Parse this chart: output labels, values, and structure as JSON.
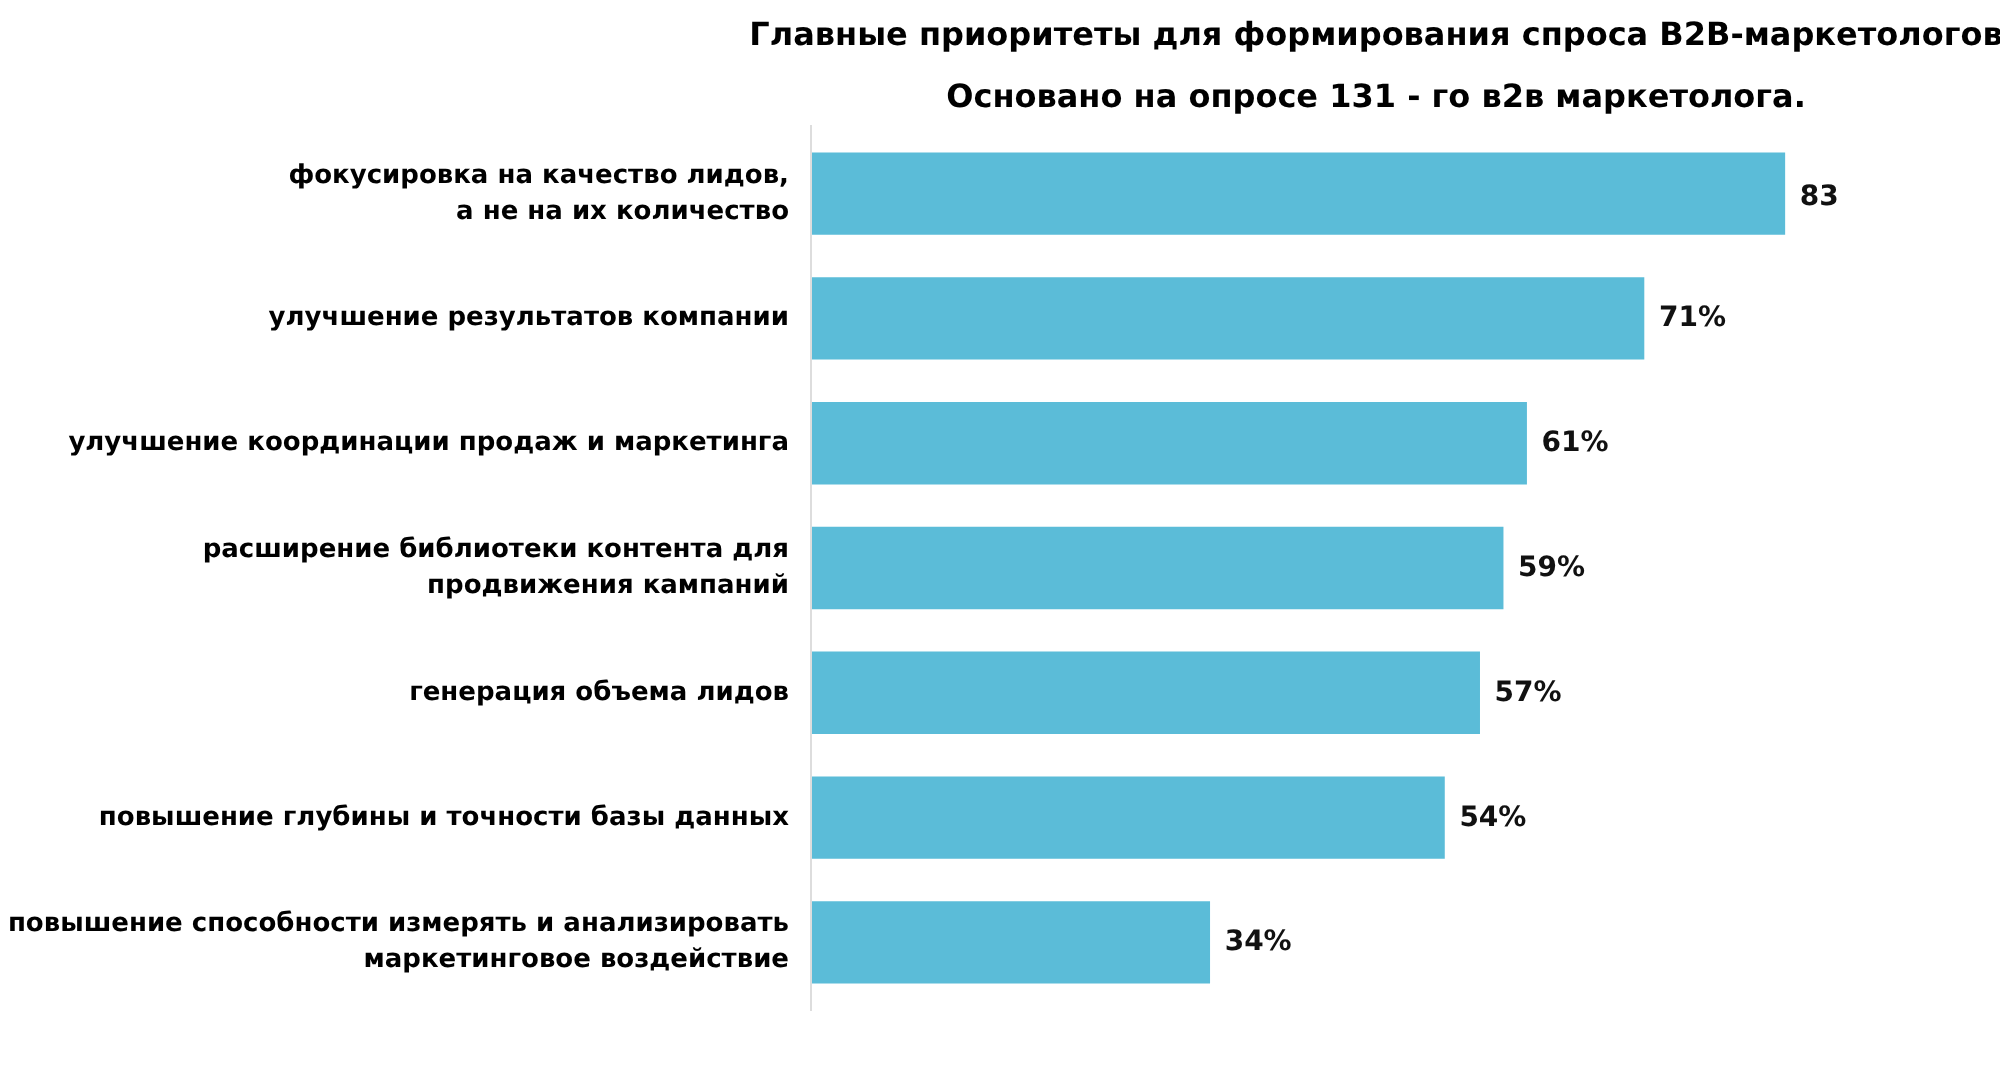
{
  "chart_data": {
    "type": "bar",
    "orientation": "horizontal",
    "title": "Главные приоритеты для формирования спроса B2B-маркетологов",
    "subtitle": "Основано на опросе 131 - го в2в маркетолога.",
    "categories": [
      "фокусировка на качество лидов,\nа не на их количество",
      "улучшение результатов компании",
      "улучшение координации продаж и маркетинга",
      "расширение библиотеки контента для\nпродвижения кампаний",
      "генерация объема лидов",
      "повышение глубины и точности базы данных",
      "повышение способности измерять и анализировать\nмаркетинговое воздействие"
    ],
    "values": [
      83,
      71,
      61,
      59,
      57,
      54,
      34
    ],
    "value_labels": [
      "83",
      "71%",
      "61%",
      "59%",
      "57%",
      "54%",
      "34%"
    ],
    "color": "#5bbcd8",
    "grid": false
  }
}
